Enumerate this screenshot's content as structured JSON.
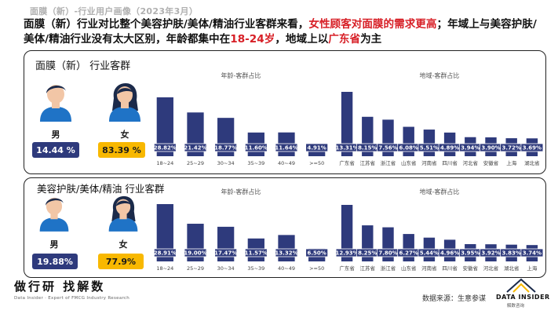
{
  "page": {
    "subtitle": "面膜（新）-行业用户画像（2023年3月）",
    "headline_part1": "面膜（新）行业对比整个美容护肤/美体/精油行业客群来看，",
    "headline_red1": "女性顾客对面膜的需求更高",
    "headline_part2": "；年域上与美容护肤/美体/精油行业没有太大区别，年龄都集中在",
    "headline_red2": "18-24岁",
    "headline_part3": "，地域上以",
    "headline_red3": "广东省",
    "headline_part4": "为主"
  },
  "colors": {
    "bar": "#2e3a7c",
    "female_badge": "#f8b800",
    "male_badge": "#2e3a7c",
    "accent_red": "#d71f26",
    "male_avatar": "#1f73c6",
    "female_avatar": "#1f73c6"
  },
  "panels": [
    {
      "title": "面膜（新） 行业客群",
      "male_label": "男",
      "female_label": "女",
      "male_pct": "14.44 %",
      "female_pct": "83.39 %"
    },
    {
      "title": "美容护肤/美体/精油 行业客群",
      "male_label": "男",
      "female_label": "女",
      "male_pct": "19.88%",
      "female_pct": "77.9%"
    }
  ],
  "chart_data": [
    {
      "type": "bar",
      "title": "年龄-客群占比",
      "categories": [
        "18~24",
        "25~29",
        "30~34",
        "35~39",
        "40~49",
        ">=50"
      ],
      "values": [
        28.82,
        21.42,
        18.77,
        11.6,
        11.64,
        4.91
      ],
      "labels": [
        "28.82%",
        "21.42%",
        "18.77%",
        "11.60%",
        "11.64%",
        "4.91%"
      ]
    },
    {
      "type": "bar",
      "title": "地域-客群占比",
      "categories": [
        "广东省",
        "江苏省",
        "浙江省",
        "山东省",
        "河南省",
        "四川省",
        "河北省",
        "安徽省",
        "上海",
        "湖北省"
      ],
      "values": [
        13.31,
        8.15,
        7.56,
        6.08,
        5.51,
        4.89,
        3.94,
        3.9,
        3.72,
        3.69
      ],
      "labels": [
        "13.31%",
        "8.15%",
        "7.56%",
        "6.08%",
        "5.51%",
        "4.89%",
        "3.94%",
        "3.90%",
        "3.72%",
        "3.69%"
      ]
    },
    {
      "type": "bar",
      "title": "年龄-客群占比",
      "categories": [
        "18~24",
        "25~29",
        "30~34",
        "35~39",
        "40~49",
        ">=50"
      ],
      "values": [
        28.91,
        19.0,
        17.47,
        11.57,
        13.32,
        6.5
      ],
      "labels": [
        "28.91%",
        "19.00%",
        "17.47%",
        "11.57%",
        "13.32%",
        "6.50%"
      ]
    },
    {
      "type": "bar",
      "title": "地域-客群占比",
      "categories": [
        "广东省",
        "江苏省",
        "浙江省",
        "山东省",
        "河南省",
        "四川省",
        "安徽省",
        "河北省",
        "湖北省",
        "上海"
      ],
      "values": [
        12.93,
        8.25,
        7.8,
        6.27,
        5.44,
        4.96,
        3.95,
        3.92,
        3.83,
        3.74
      ],
      "labels": [
        "12.93%",
        "8.25%",
        "7.80%",
        "6.27%",
        "5.44%",
        "4.96%",
        "3.95%",
        "3.92%",
        "3.83%",
        "3.74%"
      ]
    }
  ],
  "footer": {
    "brand": "做行研 找解数",
    "tagline": "Data Insider · Expert of FMCG Industry Research",
    "source": "数据来源：生意参谋",
    "logo_text": "DATA INSIDER",
    "logo_sub": "解数咨询"
  }
}
